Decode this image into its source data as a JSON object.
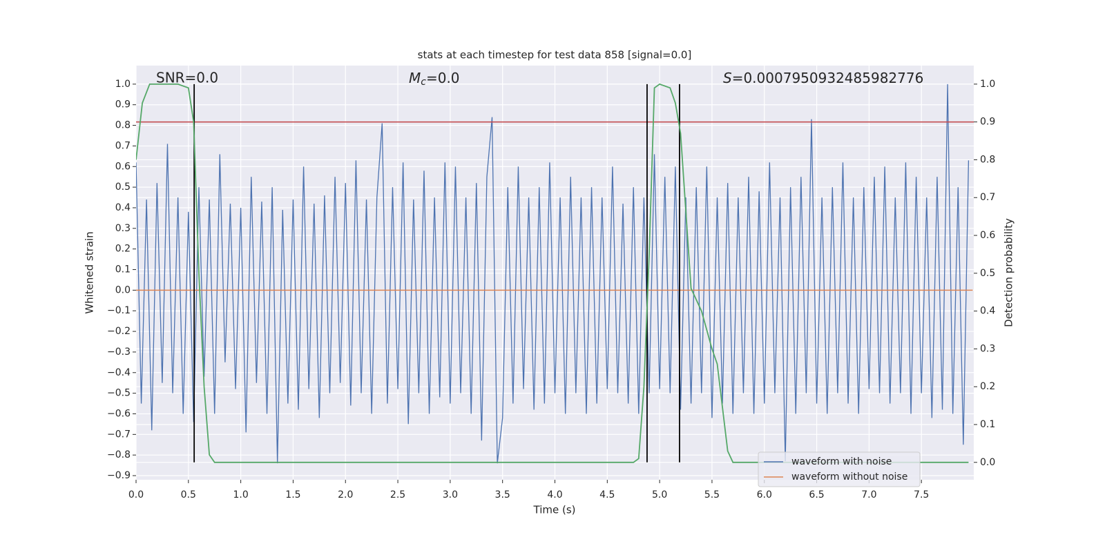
{
  "chart_data": {
    "type": "line",
    "title": "stats at each timestep for test data 858 [signal=0.0]",
    "xlabel": "Time (s)",
    "ylabel": "Whitened strain",
    "y2label": "Detection probability",
    "annotations": {
      "snr": "SNR=0.0",
      "mc_symbol": "M",
      "mc_sub": "c",
      "mc_value": "=0.0",
      "s_symbol": "S",
      "s_value": "=0.0007950932485982776"
    },
    "xlim": [
      0,
      8
    ],
    "ylim": [
      -0.92,
      1.09
    ],
    "y2lim": [
      -0.046,
      1.049
    ],
    "xticks": [
      {
        "value": 0,
        "label": "0.0"
      },
      0.5,
      {
        "value": 1,
        "label": "1.0"
      },
      1.5,
      {
        "value": 2,
        "label": "2.0"
      },
      2.5,
      {
        "value": 3,
        "label": "3.0"
      },
      3.5,
      {
        "value": 4,
        "label": "4.0"
      },
      4.5,
      {
        "value": 5,
        "label": "5.0"
      },
      5.5,
      {
        "value": 6,
        "label": "6.0"
      },
      6.5,
      {
        "value": 7,
        "label": "7.0"
      },
      7.5
    ],
    "yticks": [
      {
        "value": -0.9,
        "label": "−0.9"
      },
      {
        "value": -0.8,
        "label": "−0.8"
      },
      {
        "value": -0.7,
        "label": "−0.7"
      },
      {
        "value": -0.6,
        "label": "−0.6"
      },
      {
        "value": -0.5,
        "label": "−0.5"
      },
      {
        "value": -0.4,
        "label": "−0.4"
      },
      {
        "value": -0.3,
        "label": "−0.3"
      },
      {
        "value": -0.2,
        "label": "−0.2"
      },
      {
        "value": -0.1,
        "label": "−0.1"
      },
      {
        "value": 0,
        "label": "0.0"
      },
      0.1,
      0.2,
      0.3,
      0.4,
      0.5,
      0.6,
      0.7,
      0.8,
      0.9,
      {
        "value": 1,
        "label": "1.0"
      }
    ],
    "y2ticks": [
      {
        "value": 0,
        "label": "0.0"
      },
      0.1,
      0.2,
      0.3,
      0.4,
      0.5,
      0.6,
      0.7,
      0.8,
      0.9,
      {
        "value": 1,
        "label": "1.0"
      }
    ],
    "grid": true,
    "legend": "lower right",
    "series": [
      {
        "name": "waveform with noise",
        "color": "#4c72b0",
        "x": [
          0.0,
          0.05,
          0.1,
          0.15,
          0.2,
          0.25,
          0.3,
          0.35,
          0.4,
          0.45,
          0.5,
          0.55,
          0.6,
          0.65,
          0.7,
          0.75,
          0.8,
          0.85,
          0.9,
          0.95,
          1.0,
          1.05,
          1.1,
          1.15,
          1.2,
          1.25,
          1.3,
          1.35,
          1.4,
          1.45,
          1.5,
          1.55,
          1.6,
          1.65,
          1.7,
          1.75,
          1.8,
          1.85,
          1.9,
          1.95,
          2.0,
          2.05,
          2.1,
          2.15,
          2.2,
          2.25,
          2.3,
          2.35,
          2.4,
          2.45,
          2.5,
          2.55,
          2.6,
          2.65,
          2.7,
          2.75,
          2.8,
          2.85,
          2.9,
          2.95,
          3.0,
          3.05,
          3.1,
          3.15,
          3.2,
          3.25,
          3.3,
          3.35,
          3.4,
          3.45,
          3.5,
          3.55,
          3.6,
          3.65,
          3.7,
          3.75,
          3.8,
          3.85,
          3.9,
          3.95,
          4.0,
          4.05,
          4.1,
          4.15,
          4.2,
          4.25,
          4.3,
          4.35,
          4.4,
          4.45,
          4.5,
          4.55,
          4.6,
          4.65,
          4.7,
          4.75,
          4.8,
          4.85,
          4.9,
          4.95,
          5.0,
          5.05,
          5.1,
          5.15,
          5.2,
          5.25,
          5.3,
          5.35,
          5.4,
          5.45,
          5.5,
          5.55,
          5.6,
          5.65,
          5.7,
          5.75,
          5.8,
          5.85,
          5.9,
          5.95,
          6.0,
          6.05,
          6.1,
          6.15,
          6.2,
          6.25,
          6.3,
          6.35,
          6.4,
          6.45,
          6.5,
          6.55,
          6.6,
          6.65,
          6.7,
          6.75,
          6.8,
          6.85,
          6.9,
          6.95,
          7.0,
          7.05,
          7.1,
          7.15,
          7.2,
          7.25,
          7.3,
          7.35,
          7.4,
          7.45,
          7.5,
          7.55,
          7.6,
          7.65,
          7.7,
          7.75,
          7.8,
          7.85,
          7.9,
          7.95
        ],
        "values": [
          0.62,
          -0.55,
          0.44,
          -0.68,
          0.52,
          -0.45,
          0.71,
          -0.5,
          0.45,
          -0.6,
          0.38,
          -0.64,
          0.5,
          -0.42,
          0.44,
          -0.6,
          0.66,
          -0.35,
          0.42,
          -0.48,
          0.4,
          -0.69,
          0.55,
          -0.45,
          0.43,
          -0.6,
          0.5,
          -0.84,
          0.39,
          -0.55,
          0.44,
          -0.58,
          0.6,
          -0.48,
          0.42,
          -0.62,
          0.46,
          -0.5,
          0.55,
          -0.45,
          0.52,
          -0.56,
          0.63,
          -0.5,
          0.44,
          -0.6,
          0.45,
          0.81,
          -0.55,
          0.5,
          -0.48,
          0.62,
          -0.65,
          0.44,
          -0.5,
          0.58,
          -0.6,
          0.45,
          -0.52,
          0.62,
          -0.55,
          0.6,
          -0.5,
          0.45,
          -0.6,
          0.52,
          -0.73,
          0.55,
          0.84,
          -0.84,
          -0.62,
          0.5,
          -0.55,
          0.6,
          -0.48,
          0.45,
          -0.58,
          0.5,
          -0.55,
          0.62,
          -0.5,
          0.45,
          -0.6,
          0.55,
          -0.5,
          0.45,
          -0.6,
          0.5,
          -0.55,
          0.45,
          -0.48,
          0.6,
          -0.5,
          0.42,
          -0.55,
          0.5,
          -0.6,
          0.45,
          -0.5,
          0.66,
          -0.48,
          0.55,
          -0.5,
          0.6,
          -0.58,
          0.45,
          -0.55,
          0.5,
          -0.5,
          0.6,
          -0.62,
          0.45,
          -0.55,
          0.52,
          -0.6,
          0.45,
          -0.5,
          0.55,
          -0.6,
          0.48,
          -0.55,
          0.62,
          -0.5,
          0.45,
          -0.83,
          0.5,
          -0.6,
          0.55,
          -0.5,
          0.83,
          -0.55,
          0.45,
          -0.6,
          0.5,
          -0.5,
          0.62,
          -0.55,
          0.45,
          -0.6,
          0.5,
          -0.48,
          0.55,
          -0.5,
          0.6,
          -0.55,
          0.45,
          -0.5,
          0.62,
          -0.6,
          0.55,
          -0.5,
          0.45,
          -0.62,
          0.55,
          -0.58,
          1.0,
          -0.6,
          0.5,
          -0.75,
          0.63
        ]
      },
      {
        "name": "waveform without noise",
        "color": "#dd8452",
        "x": [
          0.0,
          7.99
        ],
        "values": [
          0,
          0
        ]
      }
    ],
    "detection": {
      "color": "#55a868",
      "axis": "y2",
      "x": [
        0.0,
        0.06,
        0.13,
        0.2,
        0.3,
        0.4,
        0.5,
        0.55,
        0.6,
        0.65,
        0.7,
        0.75,
        4.75,
        4.8,
        4.85,
        4.9,
        4.95,
        5.0,
        5.1,
        5.15,
        5.2,
        5.3,
        5.4,
        5.5,
        5.55,
        5.65,
        5.7,
        7.95
      ],
      "values": [
        0.8,
        0.95,
        1.0,
        1.0,
        1.0,
        1.0,
        0.99,
        0.9,
        0.5,
        0.2,
        0.02,
        0.0,
        0.0,
        0.01,
        0.2,
        0.55,
        0.99,
        1.0,
        0.99,
        0.95,
        0.87,
        0.46,
        0.4,
        0.3,
        0.26,
        0.03,
        0.0,
        0.0
      ]
    },
    "threshold": {
      "y": 0.9,
      "axis": "y2",
      "color": "#c44e52"
    },
    "vlines": {
      "x": [
        0.555,
        4.88,
        5.19
      ],
      "ymin": 0,
      "ymax": 1,
      "axis": "y2",
      "color": "#000000"
    }
  }
}
